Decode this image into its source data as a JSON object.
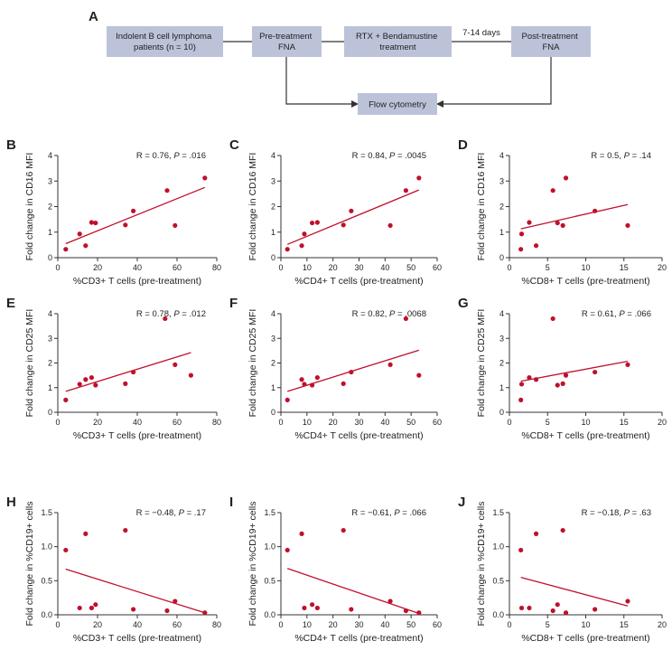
{
  "colors": {
    "point": "#c0102c",
    "fit_line": "#c0102c",
    "box_fill": "#bcc3d9",
    "axis": "#333333",
    "text": "#222222"
  },
  "flowchart": {
    "panel_letter": "A",
    "boxes": {
      "patients": [
        "Indolent B cell lymphoma",
        "patients (n = 10)"
      ],
      "pre_fna": [
        "Pre-treatment",
        "FNA"
      ],
      "treatment": [
        "RTX + Bendamustine",
        "treatment"
      ],
      "post_fna": [
        "Post-treatment",
        "FNA"
      ],
      "flow": [
        "Flow cytometry"
      ]
    },
    "interval_label": "7-14 days"
  },
  "chart_data": [
    {
      "panel": "B",
      "type": "scatter",
      "xlabel": "%CD3+ T cells (pre-treatment)",
      "ylabel": "Fold change in CD16 MFI",
      "stat": {
        "r": "R = 0.76, ",
        "p_label": "P",
        "p_value": " = .016"
      },
      "xlim": [
        0,
        80
      ],
      "ylim": [
        0,
        4
      ],
      "xticks": [
        0,
        20,
        40,
        60,
        80
      ],
      "yticks": [
        0,
        1,
        2,
        3,
        4
      ],
      "points": [
        [
          4,
          0.33
        ],
        [
          11,
          0.93
        ],
        [
          14,
          0.47
        ],
        [
          17,
          1.38
        ],
        [
          19,
          1.36
        ],
        [
          34,
          1.28
        ],
        [
          38,
          1.83
        ],
        [
          55,
          2.63
        ],
        [
          59,
          1.26
        ],
        [
          74,
          3.12
        ]
      ],
      "fit": [
        [
          4,
          0.55
        ],
        [
          74,
          2.75
        ]
      ]
    },
    {
      "panel": "C",
      "type": "scatter",
      "xlabel": "%CD4+ T cells (pre-treatment)",
      "ylabel": "Fold change in CD16 MFI",
      "stat": {
        "r": "R = 0.84, ",
        "p_label": "P",
        "p_value": " = .0045"
      },
      "xlim": [
        0,
        60
      ],
      "ylim": [
        0,
        4
      ],
      "xticks": [
        0,
        10,
        20,
        30,
        40,
        50,
        60
      ],
      "yticks": [
        0,
        1,
        2,
        3,
        4
      ],
      "points": [
        [
          2.5,
          0.33
        ],
        [
          8,
          0.47
        ],
        [
          9,
          0.93
        ],
        [
          12,
          1.36
        ],
        [
          14,
          1.38
        ],
        [
          24,
          1.28
        ],
        [
          27,
          1.83
        ],
        [
          42,
          1.26
        ],
        [
          48,
          2.63
        ],
        [
          53,
          3.12
        ]
      ],
      "fit": [
        [
          2.5,
          0.52
        ],
        [
          53,
          2.65
        ]
      ]
    },
    {
      "panel": "D",
      "type": "scatter",
      "xlabel": "%CD8+ T cells (pre-treatment)",
      "ylabel": "Fold change in CD16 MFI",
      "stat": {
        "r": "R = 0.5, ",
        "p_label": "P",
        "p_value": " = .14"
      },
      "xlim": [
        0,
        20
      ],
      "ylim": [
        0,
        4
      ],
      "xticks": [
        0,
        5,
        10,
        15,
        20
      ],
      "yticks": [
        0,
        1,
        2,
        3,
        4
      ],
      "points": [
        [
          1.5,
          0.33
        ],
        [
          1.6,
          0.93
        ],
        [
          2.6,
          1.38
        ],
        [
          3.5,
          0.47
        ],
        [
          5.7,
          2.63
        ],
        [
          6.3,
          1.36
        ],
        [
          7,
          1.26
        ],
        [
          7.4,
          3.12
        ],
        [
          11.2,
          1.83
        ],
        [
          15.5,
          1.26
        ]
      ],
      "fit": [
        [
          1.5,
          1.13
        ],
        [
          15.5,
          2.08
        ]
      ]
    },
    {
      "panel": "E",
      "type": "scatter",
      "xlabel": "%CD3+ T cells (pre-treatment)",
      "ylabel": "Fold change in CD25 MFI",
      "stat": {
        "r": "R = 0.78, ",
        "p_label": "P",
        "p_value": " = .012"
      },
      "xlim": [
        0,
        80
      ],
      "ylim": [
        0,
        4
      ],
      "xticks": [
        0,
        20,
        40,
        60,
        80
      ],
      "yticks": [
        0,
        1,
        2,
        3,
        4
      ],
      "points": [
        [
          4,
          0.5
        ],
        [
          11,
          1.14
        ],
        [
          14,
          1.33
        ],
        [
          17,
          1.41
        ],
        [
          19,
          1.1
        ],
        [
          34,
          1.16
        ],
        [
          38,
          1.63
        ],
        [
          54,
          3.8
        ],
        [
          59,
          1.93
        ],
        [
          67,
          1.5
        ]
      ],
      "fit": [
        [
          4,
          0.85
        ],
        [
          67,
          2.42
        ]
      ]
    },
    {
      "panel": "F",
      "type": "scatter",
      "xlabel": "%CD4+ T cells (pre-treatment)",
      "ylabel": "Fold change in CD25 MFI",
      "stat": {
        "r": "R = 0.82, ",
        "p_label": "P",
        "p_value": " = .0068"
      },
      "xlim": [
        0,
        60
      ],
      "ylim": [
        0,
        4
      ],
      "xticks": [
        0,
        10,
        20,
        30,
        40,
        50,
        60
      ],
      "yticks": [
        0,
        1,
        2,
        3,
        4
      ],
      "points": [
        [
          2.5,
          0.5
        ],
        [
          8,
          1.33
        ],
        [
          9,
          1.14
        ],
        [
          12,
          1.1
        ],
        [
          14,
          1.41
        ],
        [
          24,
          1.16
        ],
        [
          27,
          1.63
        ],
        [
          42,
          1.93
        ],
        [
          48,
          3.8
        ],
        [
          53,
          1.5
        ]
      ],
      "fit": [
        [
          2.5,
          0.85
        ],
        [
          53,
          2.52
        ]
      ]
    },
    {
      "panel": "G",
      "type": "scatter",
      "xlabel": "%CD8+ T cells (pre-treatment)",
      "ylabel": "Fold change in CD25 MFI",
      "stat": {
        "r": "R = 0.61, ",
        "p_label": "P",
        "p_value": " = .066"
      },
      "xlim": [
        0,
        20
      ],
      "ylim": [
        0,
        4
      ],
      "xticks": [
        0,
        5,
        10,
        15,
        20
      ],
      "yticks": [
        0,
        1,
        2,
        3,
        4
      ],
      "points": [
        [
          1.5,
          0.5
        ],
        [
          1.6,
          1.14
        ],
        [
          2.6,
          1.41
        ],
        [
          3.5,
          1.33
        ],
        [
          5.7,
          3.8
        ],
        [
          6.3,
          1.1
        ],
        [
          7,
          1.16
        ],
        [
          7.4,
          1.5
        ],
        [
          11.2,
          1.63
        ],
        [
          15.5,
          1.93
        ]
      ],
      "fit": [
        [
          1.5,
          1.26
        ],
        [
          15.5,
          2.07
        ]
      ]
    },
    {
      "panel": "H",
      "type": "scatter",
      "xlabel": "%CD3+ T cells (pre-treatment)",
      "ylabel": "Fold change in %CD19+ cells",
      "stat": {
        "r": "R = −0.48, ",
        "p_label": "P",
        "p_value": " = .17"
      },
      "xlim": [
        0,
        80
      ],
      "ylim": [
        0,
        1.5
      ],
      "xticks": [
        0,
        20,
        40,
        60,
        80
      ],
      "yticks": [
        0,
        0.5,
        1.0,
        1.5
      ],
      "points": [
        [
          4,
          0.95
        ],
        [
          11,
          0.1
        ],
        [
          14,
          1.19
        ],
        [
          17,
          0.1
        ],
        [
          19,
          0.15
        ],
        [
          34,
          1.24
        ],
        [
          38,
          0.08
        ],
        [
          55,
          0.06
        ],
        [
          59,
          0.2
        ],
        [
          74,
          0.03
        ]
      ],
      "fit": [
        [
          4,
          0.67
        ],
        [
          74,
          0.03
        ]
      ]
    },
    {
      "panel": "I",
      "type": "scatter",
      "xlabel": "%CD4+ T cells (pre-treatment)",
      "ylabel": "Fold change in %CD19+ cells",
      "stat": {
        "r": "R = −0.61, ",
        "p_label": "P",
        "p_value": " = .066"
      },
      "xlim": [
        0,
        60
      ],
      "ylim": [
        0,
        1.5
      ],
      "xticks": [
        0,
        10,
        20,
        30,
        40,
        50,
        60
      ],
      "yticks": [
        0,
        0.5,
        1.0,
        1.5
      ],
      "points": [
        [
          2.5,
          0.95
        ],
        [
          8,
          1.19
        ],
        [
          9,
          0.1
        ],
        [
          12,
          0.15
        ],
        [
          14,
          0.1
        ],
        [
          24,
          1.24
        ],
        [
          27,
          0.08
        ],
        [
          42,
          0.2
        ],
        [
          48,
          0.06
        ],
        [
          53,
          0.03
        ]
      ],
      "fit": [
        [
          2.5,
          0.68
        ],
        [
          53,
          0.02
        ]
      ]
    },
    {
      "panel": "J",
      "type": "scatter",
      "xlabel": "%CD8+ T cells (pre-treatment)",
      "ylabel": "Fold change in %CD19+ cells",
      "stat": {
        "r": "R = −0.18, ",
        "p_label": "P",
        "p_value": " = .63"
      },
      "xlim": [
        0,
        20
      ],
      "ylim": [
        0,
        1.5
      ],
      "xticks": [
        0,
        5,
        10,
        15,
        20
      ],
      "yticks": [
        0,
        0.5,
        1.0,
        1.5
      ],
      "points": [
        [
          1.5,
          0.95
        ],
        [
          1.6,
          0.1
        ],
        [
          2.6,
          0.1
        ],
        [
          3.5,
          1.19
        ],
        [
          5.7,
          0.06
        ],
        [
          6.3,
          0.15
        ],
        [
          7,
          1.24
        ],
        [
          7.4,
          0.03
        ],
        [
          11.2,
          0.08
        ],
        [
          15.5,
          0.2
        ]
      ],
      "fit": [
        [
          1.5,
          0.55
        ],
        [
          15.5,
          0.13
        ]
      ]
    }
  ]
}
